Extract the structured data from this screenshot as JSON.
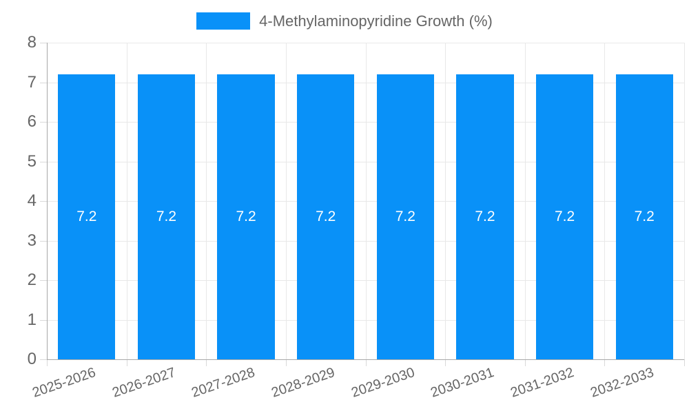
{
  "chart_data": {
    "type": "bar",
    "title": "4-Methylaminopyridine Growth (%)",
    "legend_label": "4-Methylaminopyridine Growth (%)",
    "legend_position": "top-center",
    "categories": [
      "2025-2026",
      "2026-2027",
      "2027-2028",
      "2028-2029",
      "2029-2030",
      "2030-2031",
      "2031-2032",
      "2032-2033"
    ],
    "series": [
      {
        "name": "4-Methylaminopyridine Growth (%)",
        "values": [
          7.2,
          7.2,
          7.2,
          7.2,
          7.2,
          7.2,
          7.2,
          7.2
        ],
        "value_labels": [
          "7.2",
          "7.2",
          "7.2",
          "7.2",
          "7.2",
          "7.2",
          "7.2",
          "7.2"
        ]
      }
    ],
    "xlabel": "",
    "ylabel": "",
    "ylim": [
      0,
      8
    ],
    "yticks": [
      0,
      1,
      2,
      3,
      4,
      5,
      6,
      7,
      8
    ],
    "grid": true,
    "colors": {
      "bar": "#0991f8",
      "grid": "#e8e8e8",
      "tick": "#d9d9d9",
      "axis": "#a8a8a8",
      "text": "#666666",
      "value_label": "#ffffff",
      "background": "#ffffff"
    }
  }
}
